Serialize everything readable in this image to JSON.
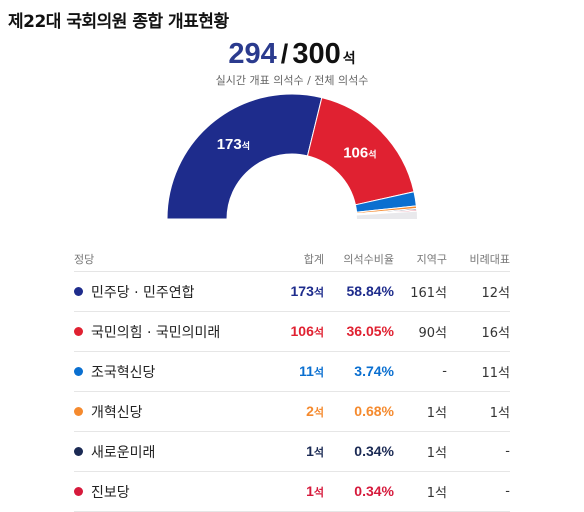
{
  "title": "제22대 국회의원 종합 개표현황",
  "summary": {
    "counted": "294",
    "separator": "/",
    "total": "300",
    "unit": "석",
    "subtitle": "실시간 개표 의석수 / 전체 의석수"
  },
  "chart_data": {
    "type": "pie",
    "variant": "half-donut",
    "total_seats": 300,
    "series": [
      {
        "name": "민주당 · 민주연합",
        "value": 173,
        "color": "#1e2c8c",
        "label": "173",
        "label_unit": "석"
      },
      {
        "name": "국민의힘 · 국민의미래",
        "value": 106,
        "color": "#e02131",
        "label": "106",
        "label_unit": "석"
      },
      {
        "name": "조국혁신당",
        "value": 11,
        "color": "#0a6fd0"
      },
      {
        "name": "개혁신당",
        "value": 2,
        "color": "#f58a2e"
      },
      {
        "name": "새로운미래",
        "value": 1,
        "color": "#1b2a54"
      },
      {
        "name": "진보당",
        "value": 1,
        "color": "#d61a3c"
      }
    ],
    "remaining_color": "#e9e9ec"
  },
  "table": {
    "headers": [
      "정당",
      "합계",
      "의석수비율",
      "지역구",
      "비례대표"
    ],
    "rows": [
      {
        "party": "민주당 · 민주연합",
        "color": "#1e2c8c",
        "total": "173",
        "ratio": "58.84%",
        "district": "161석",
        "proportional": "12석"
      },
      {
        "party": "국민의힘 · 국민의미래",
        "color": "#e02131",
        "total": "106",
        "ratio": "36.05%",
        "district": "90석",
        "proportional": "16석"
      },
      {
        "party": "조국혁신당",
        "color": "#0a6fd0",
        "total": "11",
        "ratio": "3.74%",
        "district": "-",
        "proportional": "11석"
      },
      {
        "party": "개혁신당",
        "color": "#f58a2e",
        "total": "2",
        "ratio": "0.68%",
        "district": "1석",
        "proportional": "1석"
      },
      {
        "party": "새로운미래",
        "color": "#1b2a54",
        "total": "1",
        "ratio": "0.34%",
        "district": "1석",
        "proportional": "-"
      },
      {
        "party": "진보당",
        "color": "#d61a3c",
        "total": "1",
        "ratio": "0.34%",
        "district": "1석",
        "proportional": "-"
      }
    ],
    "seat_unit": "석"
  }
}
